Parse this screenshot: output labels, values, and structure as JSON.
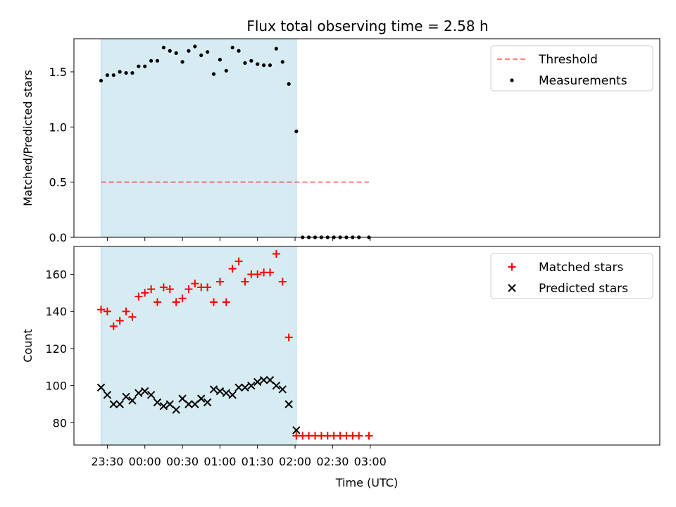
{
  "title": "Flux total observing time = 2.58 h",
  "colors": {
    "shade": "#add8e6",
    "threshold": "#ff0000",
    "measurement": "#000000",
    "matched": "#ff0000",
    "predicted": "#000000"
  },
  "chart_data": [
    {
      "type": "scatter",
      "ylabel": "Matched/Predicted stars",
      "ylim": [
        0,
        1.8
      ],
      "yticks": [
        0.0,
        0.5,
        1.0,
        1.5
      ],
      "ytick_labels": [
        "0.0",
        "0.5",
        "1.0",
        "1.5"
      ],
      "legend": [
        "Threshold",
        "Measurements"
      ],
      "legend_position": "top-right",
      "threshold": {
        "name": "Threshold",
        "y": 0.5,
        "x_start": "23:25",
        "x_end": "02:59"
      },
      "shaded_span": [
        "23:25",
        "02:01"
      ],
      "series": [
        {
          "name": "Measurements",
          "x": [
            "23:25",
            "23:30",
            "23:35",
            "23:40",
            "23:45",
            "23:50",
            "23:55",
            "00:00",
            "00:05",
            "00:10",
            "00:15",
            "00:20",
            "00:25",
            "00:30",
            "00:35",
            "00:40",
            "00:45",
            "00:50",
            "00:55",
            "01:00",
            "01:05",
            "01:10",
            "01:15",
            "01:20",
            "01:25",
            "01:30",
            "01:35",
            "01:40",
            "01:45",
            "01:50",
            "01:55",
            "02:01",
            "02:06",
            "02:11",
            "02:16",
            "02:21",
            "02:26",
            "02:31",
            "02:36",
            "02:41",
            "02:46",
            "02:51",
            "02:59"
          ],
          "y": [
            1.42,
            1.47,
            1.47,
            1.5,
            1.49,
            1.49,
            1.55,
            1.55,
            1.6,
            1.6,
            1.72,
            1.69,
            1.67,
            1.59,
            1.69,
            1.73,
            1.65,
            1.68,
            1.48,
            1.61,
            1.51,
            1.72,
            1.69,
            1.58,
            1.6,
            1.57,
            1.56,
            1.56,
            1.71,
            1.59,
            1.39,
            0.96,
            0,
            0,
            0,
            0,
            0,
            0,
            0,
            0,
            0,
            0,
            0
          ]
        }
      ]
    },
    {
      "type": "scatter",
      "ylabel": "Count",
      "xlabel": "Time (UTC)",
      "ylim": [
        68,
        175
      ],
      "yticks": [
        80,
        100,
        120,
        140,
        160
      ],
      "ytick_labels": [
        "80",
        "100",
        "120",
        "140",
        "160"
      ],
      "xticks": [
        "23:30",
        "00:00",
        "00:30",
        "01:00",
        "01:30",
        "02:00",
        "02:30",
        "03:00"
      ],
      "legend": [
        "Matched stars",
        "Predicted stars"
      ],
      "legend_position": "top-right",
      "shaded_span": [
        "23:25",
        "02:01"
      ],
      "series": [
        {
          "name": "Matched stars",
          "marker": "+",
          "x": [
            "23:25",
            "23:30",
            "23:35",
            "23:40",
            "23:45",
            "23:50",
            "23:55",
            "00:00",
            "00:05",
            "00:10",
            "00:15",
            "00:20",
            "00:25",
            "00:30",
            "00:35",
            "00:40",
            "00:45",
            "00:50",
            "00:55",
            "01:00",
            "01:05",
            "01:10",
            "01:15",
            "01:20",
            "01:25",
            "01:30",
            "01:35",
            "01:40",
            "01:45",
            "01:50",
            "01:55",
            "02:01",
            "02:06",
            "02:11",
            "02:16",
            "02:21",
            "02:26",
            "02:31",
            "02:36",
            "02:41",
            "02:46",
            "02:51",
            "02:59"
          ],
          "y": [
            141,
            140,
            132,
            135,
            140,
            137,
            148,
            150,
            152,
            145,
            153,
            152,
            145,
            147,
            152,
            155,
            153,
            153,
            145,
            156,
            145,
            163,
            167,
            156,
            160,
            160,
            161,
            161,
            171,
            156,
            126,
            73,
            73,
            73,
            73,
            73,
            73,
            73,
            73,
            73,
            73,
            73,
            73
          ]
        },
        {
          "name": "Predicted stars",
          "marker": "x",
          "x": [
            "23:25",
            "23:30",
            "23:35",
            "23:40",
            "23:45",
            "23:50",
            "23:55",
            "00:00",
            "00:05",
            "00:10",
            "00:15",
            "00:20",
            "00:25",
            "00:30",
            "00:35",
            "00:40",
            "00:45",
            "00:50",
            "00:55",
            "01:00",
            "01:05",
            "01:10",
            "01:15",
            "01:20",
            "01:25",
            "01:30",
            "01:35",
            "01:40",
            "01:45",
            "01:50",
            "01:55",
            "02:01"
          ],
          "y": [
            99,
            95,
            90,
            90,
            94,
            92,
            96,
            97,
            95,
            91,
            89,
            90,
            87,
            93,
            90,
            90,
            93,
            91,
            98,
            97,
            96,
            95,
            99,
            99,
            100,
            102,
            103,
            103,
            100,
            98,
            90,
            76
          ]
        }
      ]
    }
  ]
}
